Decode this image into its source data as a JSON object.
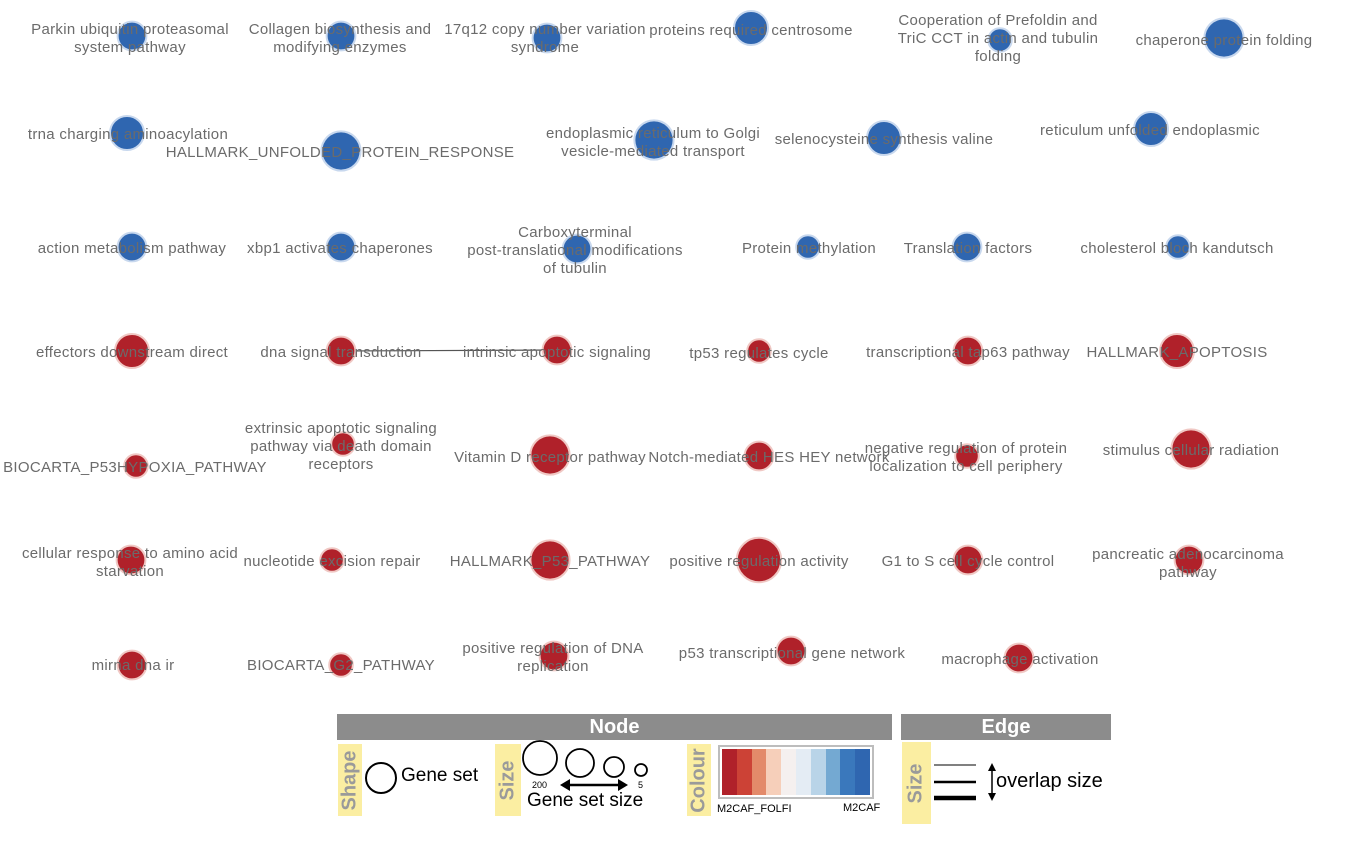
{
  "colors": {
    "up": "#b0212a",
    "up_stroke": "#f0c8c4",
    "down": "#2f66b0",
    "down_stroke": "#c8d8ee",
    "label": "#6b6b6b",
    "edge": "#555555",
    "legend_header": "#8c8c8c",
    "legend_tag": "#fbeea2"
  },
  "nodes": [
    {
      "id": "n1",
      "label": [
        "Parkin ubiquitin proteasomal",
        "system pathway"
      ],
      "group": "down",
      "size": 4
    },
    {
      "id": "n2",
      "label": [
        "Collagen biosynthesis and",
        "modifying enzymes"
      ],
      "group": "down",
      "size": 4
    },
    {
      "id": "n3",
      "label": [
        "17q12 copy number variation",
        "syndrome"
      ],
      "group": "down",
      "size": 4
    },
    {
      "id": "n4",
      "label": [
        "proteins required centrosome"
      ],
      "group": "down",
      "size": 5
    },
    {
      "id": "n5",
      "label": [
        "Cooperation of Prefoldin and",
        "TriC CCT in actin and tubulin",
        "folding"
      ],
      "group": "down",
      "size": 3
    },
    {
      "id": "n6",
      "label": [
        "chaperone protein folding"
      ],
      "group": "down",
      "size": 6
    },
    {
      "id": "n7",
      "label": [
        "trna charging aminoacylation"
      ],
      "group": "down",
      "size": 5
    },
    {
      "id": "n8",
      "label": [
        "HALLMARK_UNFOLDED_PROTEIN_RESPONSE"
      ],
      "group": "down",
      "size": 6
    },
    {
      "id": "n9",
      "label": [
        "endoplasmic reticulum to Golgi",
        "vesicle-mediated transport"
      ],
      "group": "down",
      "size": 6
    },
    {
      "id": "n10",
      "label": [
        "selenocysteine synthesis valine"
      ],
      "group": "down",
      "size": 5
    },
    {
      "id": "n11",
      "label": [
        "reticulum unfolded endoplasmic"
      ],
      "group": "down",
      "size": 5
    },
    {
      "id": "n12",
      "label": [
        "action metabolism pathway"
      ],
      "group": "down",
      "size": 4
    },
    {
      "id": "n13",
      "label": [
        "xbp1 activates chaperones"
      ],
      "group": "down",
      "size": 4
    },
    {
      "id": "n14",
      "label": [
        "Carboxyterminal",
        "post-translational modifications",
        "of tubulin"
      ],
      "group": "down",
      "size": 4
    },
    {
      "id": "n15",
      "label": [
        "Protein methylation"
      ],
      "group": "down",
      "size": 3
    },
    {
      "id": "n16",
      "label": [
        "Translation factors"
      ],
      "group": "down",
      "size": 4
    },
    {
      "id": "n17",
      "label": [
        "cholesterol bloch kandutsch"
      ],
      "group": "down",
      "size": 3
    },
    {
      "id": "n18",
      "label": [
        "effectors downstream direct"
      ],
      "group": "up",
      "size": 5
    },
    {
      "id": "n19",
      "label": [
        "dna signal transduction"
      ],
      "group": "up",
      "size": 4
    },
    {
      "id": "n20",
      "label": [
        "intrinsic apoptotic signaling"
      ],
      "group": "up",
      "size": 4
    },
    {
      "id": "n21",
      "label": [
        "tp53 regulates cycle"
      ],
      "group": "up",
      "size": 3
    },
    {
      "id": "n22",
      "label": [
        "transcriptional tap63 pathway"
      ],
      "group": "up",
      "size": 4
    },
    {
      "id": "n23",
      "label": [
        "HALLMARK_APOPTOSIS"
      ],
      "group": "up",
      "size": 5
    },
    {
      "id": "n24",
      "label": [
        "BIOCARTA_P53HYPOXIA_PATHWAY"
      ],
      "group": "up",
      "size": 3
    },
    {
      "id": "n25",
      "label": [
        "extrinsic apoptotic signaling",
        "pathway via death domain",
        "receptors"
      ],
      "group": "up",
      "size": 3
    },
    {
      "id": "n26",
      "label": [
        "Vitamin D receptor pathway"
      ],
      "group": "up",
      "size": 6
    },
    {
      "id": "n27",
      "label": [
        "Notch-mediated HES HEY network"
      ],
      "group": "up",
      "size": 4
    },
    {
      "id": "n28",
      "label": [
        "negative regulation of protein",
        "localization to cell periphery"
      ],
      "group": "up",
      "size": 3
    },
    {
      "id": "n29",
      "label": [
        "stimulus cellular radiation"
      ],
      "group": "up",
      "size": 6
    },
    {
      "id": "n30",
      "label": [
        "cellular response to amino acid",
        "starvation"
      ],
      "group": "up",
      "size": 4
    },
    {
      "id": "n31",
      "label": [
        "nucleotide excision repair"
      ],
      "group": "up",
      "size": 3
    },
    {
      "id": "n32",
      "label": [
        "HALLMARK_P53_PATHWAY"
      ],
      "group": "up",
      "size": 6
    },
    {
      "id": "n33",
      "label": [
        "positive regulation activity"
      ],
      "group": "up",
      "size": 7
    },
    {
      "id": "n34",
      "label": [
        "G1 to S cell cycle control"
      ],
      "group": "up",
      "size": 4
    },
    {
      "id": "n35",
      "label": [
        "pancreatic adenocarcinoma",
        "pathway"
      ],
      "group": "up",
      "size": 4
    },
    {
      "id": "n36",
      "label": [
        "mirna dna ir"
      ],
      "group": "up",
      "size": 4
    },
    {
      "id": "n37",
      "label": [
        "BIOCARTA_G2_PATHWAY"
      ],
      "group": "up",
      "size": 3
    },
    {
      "id": "n38",
      "label": [
        "positive regulation of DNA",
        "replication"
      ],
      "group": "up",
      "size": 4
    },
    {
      "id": "n39",
      "label": [
        "p53 transcriptional gene network"
      ],
      "group": "up",
      "size": 4
    },
    {
      "id": "n40",
      "label": [
        "macrophage activation"
      ],
      "group": "up",
      "size": 4
    }
  ],
  "edges": [
    {
      "source": "n19",
      "target": "n20"
    }
  ],
  "legend": {
    "node_header": "Node",
    "edge_header": "Edge",
    "shape_tag": "Shape",
    "shape_label": "Gene set",
    "size_tag": "Size",
    "size_label": "Gene set size",
    "size_max": "200",
    "size_min": "5",
    "colour_tag": "Colour",
    "colour_left": "M2CAF_FOLFI",
    "colour_right": "M2CAF",
    "colour_scale": [
      "#b0212a",
      "#cc4236",
      "#e38a6a",
      "#f6cfba",
      "#f5f0ef",
      "#e4ecf4",
      "#b9d4e8",
      "#74a9d2",
      "#3a78bc",
      "#2f66b0"
    ],
    "edge_size_tag": "Size",
    "edge_label": "overlap size"
  }
}
